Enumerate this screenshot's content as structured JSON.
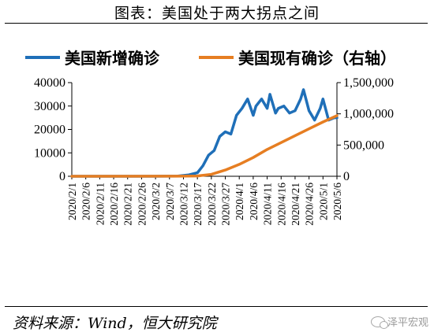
{
  "title": "图表：美国处于两大拐点之间",
  "source": "资料来源：Wind，恒大研究院",
  "watermark": "泽平宏观",
  "colors": {
    "series1": "#1f6fb8",
    "series2": "#e67e22"
  },
  "chart_data": {
    "type": "line",
    "title": "",
    "legend_position": "top",
    "grid": false,
    "x_tick_labels": [
      "2020/2/1",
      "2020/2/6",
      "2020/2/11",
      "2020/2/16",
      "2020/2/21",
      "2020/2/26",
      "2020/3/2",
      "2020/3/7",
      "2020/3/12",
      "2020/3/17",
      "2020/3/22",
      "2020/3/27",
      "2020/4/1",
      "2020/4/6",
      "2020/4/11",
      "2020/4/16",
      "2020/4/21",
      "2020/4/26",
      "2020/5/1",
      "2020/5/6"
    ],
    "left_axis": {
      "ylim": [
        0,
        40000
      ],
      "ticks": [
        "0",
        "10000",
        "20000",
        "30000",
        "40000"
      ]
    },
    "right_axis": {
      "ylim": [
        0,
        1500000
      ],
      "ticks": [
        "0",
        "500,000",
        "1,000,000",
        "1,500,000"
      ]
    },
    "series": [
      {
        "name": "美国新增确诊",
        "axis": "left",
        "dates": [
          "2020/2/1",
          "2020/3/1",
          "2020/3/10",
          "2020/3/14",
          "2020/3/17",
          "2020/3/19",
          "2020/3/21",
          "2020/3/23",
          "2020/3/25",
          "2020/3/27",
          "2020/3/29",
          "2020/3/31",
          "2020/4/2",
          "2020/4/4",
          "2020/4/6",
          "2020/4/7",
          "2020/4/9",
          "2020/4/11",
          "2020/4/12",
          "2020/4/14",
          "2020/4/15",
          "2020/4/17",
          "2020/4/19",
          "2020/4/21",
          "2020/4/23",
          "2020/4/24",
          "2020/4/26",
          "2020/4/28",
          "2020/4/30",
          "2020/5/1",
          "2020/5/3",
          "2020/5/5",
          "2020/5/6"
        ],
        "values": [
          0,
          0,
          100,
          600,
          1500,
          4500,
          9000,
          11000,
          17000,
          19000,
          18000,
          26000,
          29000,
          33000,
          26000,
          30000,
          33000,
          29000,
          35000,
          27000,
          29000,
          30000,
          27000,
          28000,
          33000,
          37000,
          28000,
          24000,
          29000,
          33000,
          24000,
          25000,
          25000
        ]
      },
      {
        "name": "美国现有确诊（右轴）",
        "axis": "right",
        "dates": [
          "2020/2/1",
          "2020/3/10",
          "2020/3/17",
          "2020/3/22",
          "2020/3/27",
          "2020/4/1",
          "2020/4/6",
          "2020/4/11",
          "2020/4/16",
          "2020/4/21",
          "2020/4/26",
          "2020/5/1",
          "2020/5/6"
        ],
        "values": [
          0,
          1000,
          5000,
          30000,
          100000,
          190000,
          300000,
          430000,
          540000,
          650000,
          760000,
          870000,
          970000
        ]
      }
    ]
  }
}
